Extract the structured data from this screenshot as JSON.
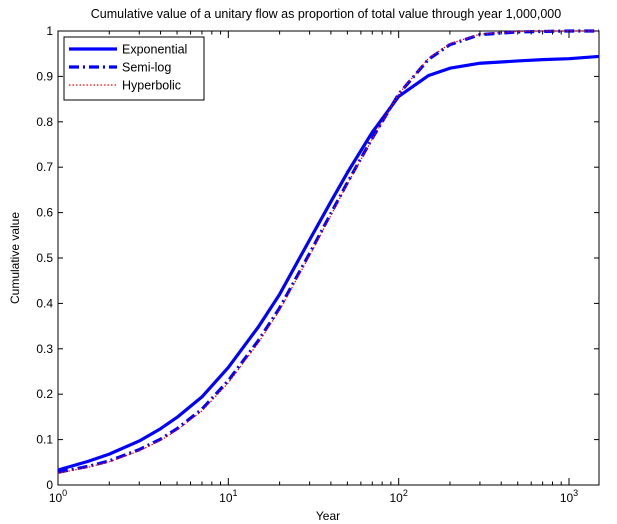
{
  "chart_data": {
    "type": "line",
    "title": "Cumulative value of a unitary flow as proportion of total value through year 1,000,000",
    "xlabel": "Year",
    "ylabel": "Cumulative value",
    "xscale": "log",
    "xlim": [
      1,
      1500
    ],
    "ylim": [
      0,
      1
    ],
    "grid": false,
    "legend_position": "top-left",
    "x_ticks": [
      {
        "value": 1,
        "base": "10",
        "exp": "0"
      },
      {
        "value": 10,
        "base": "10",
        "exp": "1"
      },
      {
        "value": 100,
        "base": "10",
        "exp": "2"
      },
      {
        "value": 1000,
        "base": "10",
        "exp": "3"
      }
    ],
    "y_ticks": [
      {
        "value": 0,
        "label": "0"
      },
      {
        "value": 0.1,
        "label": "0.1"
      },
      {
        "value": 0.2,
        "label": "0.2"
      },
      {
        "value": 0.3,
        "label": "0.3"
      },
      {
        "value": 0.4,
        "label": "0.4"
      },
      {
        "value": 0.5,
        "label": "0.5"
      },
      {
        "value": 0.6,
        "label": "0.6"
      },
      {
        "value": 0.7,
        "label": "0.7"
      },
      {
        "value": 0.8,
        "label": "0.8"
      },
      {
        "value": 0.9,
        "label": "0.9"
      },
      {
        "value": 1,
        "label": "1"
      }
    ],
    "series": [
      {
        "name": "Exponential",
        "color": "#0000ff",
        "style": "solid",
        "x": [
          1,
          1.5,
          2,
          3,
          4,
          5,
          7,
          10,
          15,
          20,
          30,
          40,
          50,
          70,
          100,
          150,
          200,
          300,
          500,
          700,
          1000,
          1500
        ],
        "y": [
          0.033,
          0.052,
          0.068,
          0.097,
          0.124,
          0.149,
          0.194,
          0.259,
          0.348,
          0.42,
          0.54,
          0.624,
          0.688,
          0.777,
          0.856,
          0.902,
          0.918,
          0.929,
          0.934,
          0.937,
          0.939,
          0.944
        ]
      },
      {
        "name": "Semi-log",
        "color": "#0000ff",
        "style": "dashdot",
        "x": [
          1,
          1.5,
          2,
          3,
          4,
          5,
          7,
          10,
          15,
          20,
          30,
          40,
          50,
          70,
          100,
          150,
          200,
          300,
          500,
          700,
          1000,
          1500
        ],
        "y": [
          0.028,
          0.041,
          0.053,
          0.078,
          0.101,
          0.124,
          0.167,
          0.23,
          0.318,
          0.39,
          0.51,
          0.598,
          0.666,
          0.764,
          0.861,
          0.938,
          0.97,
          0.992,
          0.998,
          0.999,
          1.0,
          1.0
        ]
      },
      {
        "name": "Hyperbolic",
        "color": "#ff0000",
        "style": "dotted",
        "x": [
          1,
          1.5,
          2,
          3,
          4,
          5,
          7,
          10,
          15,
          20,
          30,
          40,
          50,
          70,
          100,
          150,
          200,
          300,
          500,
          700,
          1000,
          1500
        ],
        "y": [
          0.026,
          0.039,
          0.051,
          0.075,
          0.098,
          0.121,
          0.163,
          0.225,
          0.313,
          0.385,
          0.505,
          0.594,
          0.663,
          0.762,
          0.861,
          0.94,
          0.972,
          0.993,
          0.999,
          1.0,
          1.0,
          1.0
        ]
      }
    ]
  }
}
